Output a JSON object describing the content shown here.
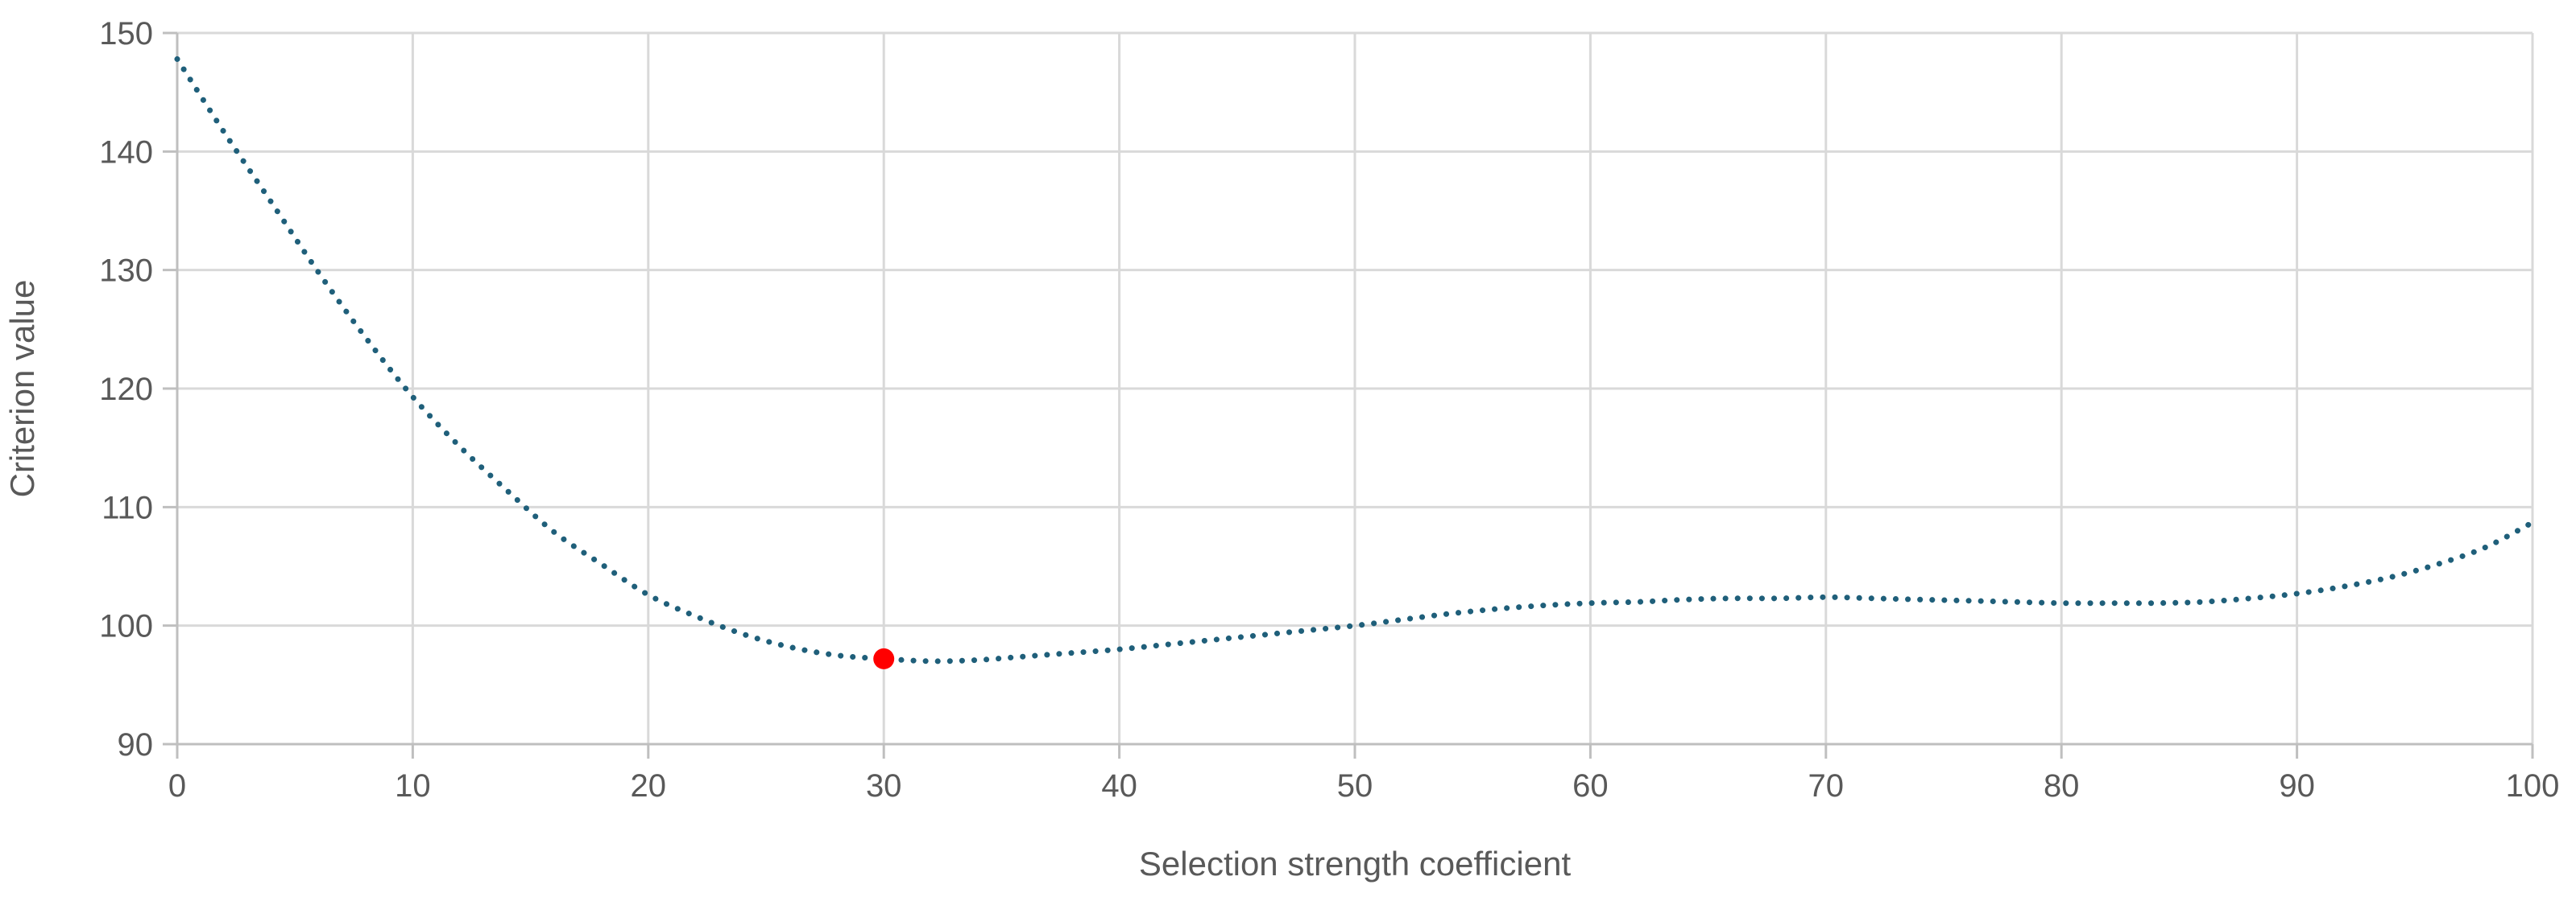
{
  "chart_data": {
    "type": "line",
    "title": "",
    "xlabel": "Selection strength coefficient",
    "ylabel": "Criterion value",
    "xlim": [
      0,
      100
    ],
    "ylim": [
      90,
      150
    ],
    "x_ticks": [
      0,
      10,
      20,
      30,
      40,
      50,
      60,
      70,
      80,
      90,
      100
    ],
    "y_ticks": [
      90,
      100,
      110,
      120,
      130,
      140,
      150
    ],
    "grid": true,
    "legend": "none",
    "series": [
      {
        "style": "dotted",
        "color": "#1f5f7a",
        "x": [
          0,
          2,
          4,
          6,
          8,
          10,
          12,
          14,
          16,
          18,
          20,
          22,
          24,
          26,
          28,
          30,
          32,
          34,
          36,
          38,
          40,
          42,
          44,
          46,
          48,
          50,
          52,
          54,
          56,
          58,
          60,
          62,
          64,
          66,
          68,
          70,
          72,
          74,
          76,
          78,
          80,
          82,
          84,
          86,
          88,
          90,
          92,
          94,
          96,
          98,
          100
        ],
        "y": [
          147.8,
          141.6,
          135.7,
          129.8,
          124.3,
          119.3,
          115.1,
          111.4,
          107.9,
          105.2,
          102.6,
          100.8,
          99.3,
          98.2,
          97.5,
          97.2,
          97.0,
          97.1,
          97.4,
          97.7,
          98.0,
          98.4,
          98.8,
          99.2,
          99.6,
          100.0,
          100.5,
          101.0,
          101.4,
          101.7,
          101.9,
          102.0,
          102.2,
          102.3,
          102.3,
          102.4,
          102.3,
          102.2,
          102.1,
          102.0,
          101.9,
          101.9,
          101.9,
          102.0,
          102.3,
          102.7,
          103.3,
          104.1,
          105.2,
          106.6,
          108.7
        ]
      }
    ],
    "highlight_point": {
      "x": 30,
      "y": 97.2,
      "color": "#ff0000"
    }
  }
}
